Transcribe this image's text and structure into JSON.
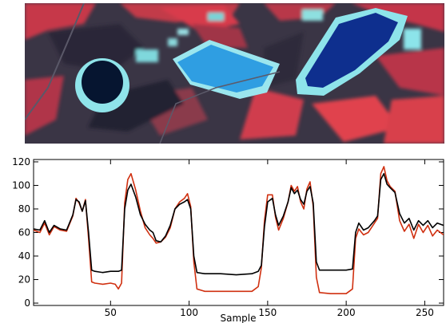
{
  "chart_data": [
    {
      "type": "image",
      "image_kind": "false-color satellite image",
      "description_features": [
        "small dark lake with cyan rim (left)",
        "light-blue pond (center)",
        "large dark-blue lake with cyan rim (right)",
        "red vegetation fields",
        "dark forested terrain"
      ],
      "colors": {
        "vegetation": "#d83040",
        "forest": "#2c2a3a",
        "lake_dark": "#0a1a40",
        "lake_blue": "#2f9fe0",
        "shore": "#7fe0e6"
      }
    },
    {
      "type": "line",
      "title": "",
      "xlabel": "Sample",
      "ylabel": "",
      "xlim": [
        1,
        262
      ],
      "ylim": [
        -2,
        122
      ],
      "x_ticks": [
        50,
        100,
        150,
        200,
        250
      ],
      "y_ticks": [
        0,
        20,
        40,
        60,
        80,
        100,
        120
      ],
      "grid": false,
      "legend": false,
      "series": [
        {
          "color": "#000000",
          "points": [
            [
              1,
              63
            ],
            [
              5,
              62
            ],
            [
              8,
              70
            ],
            [
              11,
              60
            ],
            [
              14,
              66
            ],
            [
              18,
              63
            ],
            [
              22,
              62
            ],
            [
              26,
              75
            ],
            [
              28,
              88
            ],
            [
              30,
              86
            ],
            [
              32,
              78
            ],
            [
              34,
              87
            ],
            [
              36,
              60
            ],
            [
              38,
              28
            ],
            [
              40,
              27
            ],
            [
              45,
              26
            ],
            [
              50,
              27
            ],
            [
              55,
              27
            ],
            [
              57,
              28
            ],
            [
              59,
              80
            ],
            [
              61,
              96
            ],
            [
              63,
              101
            ],
            [
              66,
              90
            ],
            [
              69,
              75
            ],
            [
              72,
              67
            ],
            [
              75,
              62
            ],
            [
              77,
              60
            ],
            [
              79,
              53
            ],
            [
              82,
              52
            ],
            [
              85,
              57
            ],
            [
              88,
              66
            ],
            [
              91,
              80
            ],
            [
              94,
              84
            ],
            [
              97,
              86
            ],
            [
              99,
              88
            ],
            [
              101,
              80
            ],
            [
              103,
              40
            ],
            [
              105,
              26
            ],
            [
              110,
              25
            ],
            [
              120,
              25
            ],
            [
              130,
              24
            ],
            [
              140,
              25
            ],
            [
              144,
              27
            ],
            [
              146,
              32
            ],
            [
              148,
              65
            ],
            [
              150,
              86
            ],
            [
              153,
              89
            ],
            [
              155,
              75
            ],
            [
              157,
              66
            ],
            [
              160,
              74
            ],
            [
              163,
              86
            ],
            [
              165,
              98
            ],
            [
              167,
              93
            ],
            [
              169,
              96
            ],
            [
              171,
              88
            ],
            [
              173,
              84
            ],
            [
              175,
              95
            ],
            [
              177,
              99
            ],
            [
              179,
              85
            ],
            [
              181,
              35
            ],
            [
              183,
              28
            ],
            [
              190,
              28
            ],
            [
              200,
              28
            ],
            [
              204,
              29
            ],
            [
              206,
              60
            ],
            [
              208,
              68
            ],
            [
              211,
              62
            ],
            [
              214,
              64
            ],
            [
              218,
              70
            ],
            [
              220,
              74
            ],
            [
              222,
              105
            ],
            [
              224,
              110
            ],
            [
              226,
              101
            ],
            [
              228,
              98
            ],
            [
              231,
              94
            ],
            [
              234,
              76
            ],
            [
              237,
              68
            ],
            [
              240,
              72
            ],
            [
              243,
              62
            ],
            [
              246,
              70
            ],
            [
              249,
              66
            ],
            [
              252,
              70
            ],
            [
              255,
              64
            ],
            [
              258,
              68
            ],
            [
              262,
              66
            ]
          ]
        },
        {
          "color": "#d03010",
          "points": [
            [
              1,
              62
            ],
            [
              5,
              60
            ],
            [
              8,
              68
            ],
            [
              11,
              58
            ],
            [
              14,
              65
            ],
            [
              18,
              62
            ],
            [
              22,
              61
            ],
            [
              26,
              74
            ],
            [
              28,
              89
            ],
            [
              30,
              85
            ],
            [
              32,
              78
            ],
            [
              34,
              88
            ],
            [
              36,
              55
            ],
            [
              38,
              18
            ],
            [
              40,
              17
            ],
            [
              45,
              16
            ],
            [
              50,
              17
            ],
            [
              53,
              16
            ],
            [
              55,
              12
            ],
            [
              57,
              17
            ],
            [
              59,
              85
            ],
            [
              61,
              105
            ],
            [
              63,
              110
            ],
            [
              66,
              96
            ],
            [
              69,
              78
            ],
            [
              72,
              64
            ],
            [
              75,
              58
            ],
            [
              77,
              55
            ],
            [
              79,
              51
            ],
            [
              82,
              52
            ],
            [
              85,
              56
            ],
            [
              88,
              64
            ],
            [
              91,
              80
            ],
            [
              94,
              86
            ],
            [
              97,
              89
            ],
            [
              99,
              93
            ],
            [
              101,
              82
            ],
            [
              103,
              35
            ],
            [
              105,
              12
            ],
            [
              110,
              10
            ],
            [
              120,
              10
            ],
            [
              130,
              10
            ],
            [
              140,
              10
            ],
            [
              144,
              14
            ],
            [
              146,
              30
            ],
            [
              148,
              70
            ],
            [
              150,
              92
            ],
            [
              153,
              92
            ],
            [
              155,
              73
            ],
            [
              157,
              62
            ],
            [
              160,
              72
            ],
            [
              163,
              86
            ],
            [
              165,
              100
            ],
            [
              167,
              95
            ],
            [
              169,
              99
            ],
            [
              171,
              86
            ],
            [
              173,
              80
            ],
            [
              175,
              97
            ],
            [
              177,
              103
            ],
            [
              179,
              82
            ],
            [
              181,
              22
            ],
            [
              183,
              9
            ],
            [
              190,
              8
            ],
            [
              200,
              8
            ],
            [
              204,
              12
            ],
            [
              206,
              55
            ],
            [
              208,
              63
            ],
            [
              211,
              58
            ],
            [
              214,
              60
            ],
            [
              218,
              68
            ],
            [
              220,
              72
            ],
            [
              222,
              110
            ],
            [
              224,
              116
            ],
            [
              226,
              104
            ],
            [
              228,
              99
            ],
            [
              231,
              95
            ],
            [
              234,
              70
            ],
            [
              237,
              61
            ],
            [
              240,
              67
            ],
            [
              243,
              55
            ],
            [
              246,
              67
            ],
            [
              249,
              60
            ],
            [
              252,
              66
            ],
            [
              255,
              57
            ],
            [
              258,
              62
            ],
            [
              262,
              58
            ]
          ]
        }
      ]
    }
  ]
}
